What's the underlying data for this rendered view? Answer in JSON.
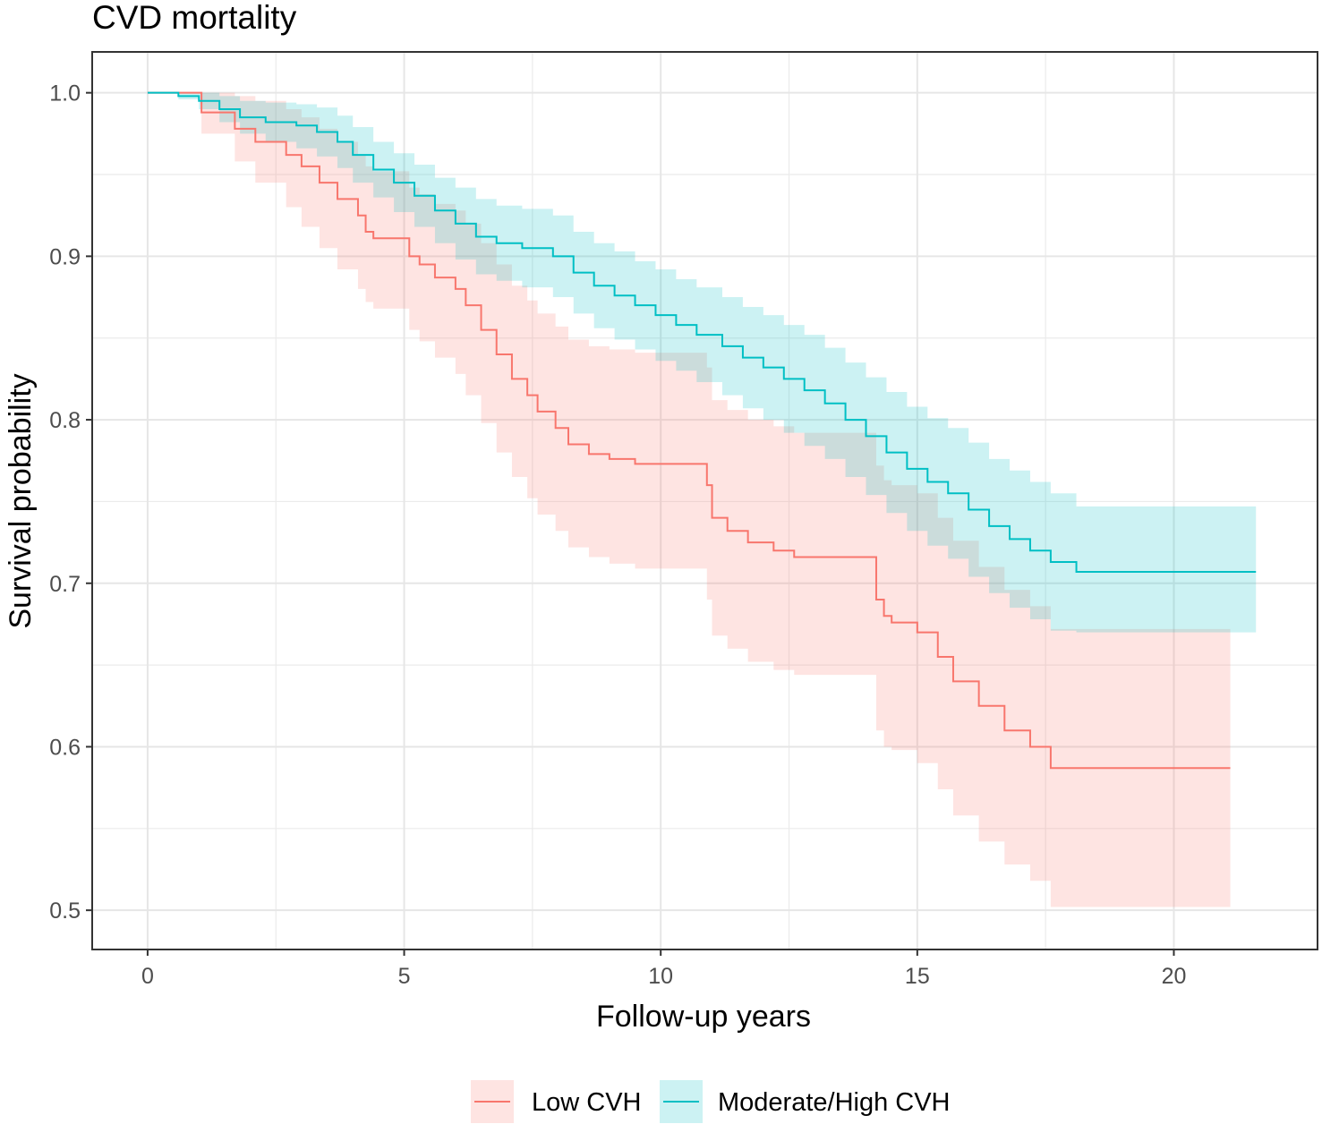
{
  "chart_data": {
    "type": "line",
    "subtype": "kaplan-meier step curve with confidence bands",
    "title": "CVD mortality",
    "xlabel": "Follow-up years",
    "ylabel": "Survival probability",
    "xlim": [
      -1.08,
      22.8
    ],
    "ylim": [
      0.476,
      1.025
    ],
    "xticks": [
      0,
      5,
      10,
      15,
      20
    ],
    "xtick_labels": [
      "0",
      "5",
      "10",
      "15",
      "20"
    ],
    "yticks": [
      0.5,
      0.6,
      0.7,
      0.8,
      0.9,
      1.0
    ],
    "ytick_labels": [
      "0.5",
      "0.6",
      "0.7",
      "0.8",
      "0.9",
      "1.0"
    ],
    "grid": true,
    "legend_position": "bottom",
    "series": [
      {
        "name": "Low CVH",
        "color": "#F8766D",
        "band_color": "#F8766D",
        "x": [
          0,
          1.05,
          1.7,
          2.1,
          2.7,
          3.0,
          3.35,
          3.7,
          4.1,
          4.25,
          4.4,
          5.1,
          5.3,
          5.6,
          6.0,
          6.2,
          6.5,
          6.8,
          7.1,
          7.4,
          7.6,
          7.95,
          8.2,
          8.6,
          9.0,
          9.5,
          10.0,
          10.4,
          10.9,
          11.0,
          11.3,
          11.7,
          12.2,
          12.6,
          13.2,
          14.2,
          14.35,
          14.5,
          15.0,
          15.4,
          15.7,
          16.2,
          16.7,
          17.2,
          17.6,
          21.1
        ],
        "values": [
          1.0,
          0.988,
          0.978,
          0.97,
          0.962,
          0.955,
          0.945,
          0.935,
          0.925,
          0.915,
          0.911,
          0.9,
          0.895,
          0.887,
          0.88,
          0.87,
          0.855,
          0.84,
          0.825,
          0.815,
          0.805,
          0.795,
          0.785,
          0.779,
          0.776,
          0.773,
          0.773,
          0.773,
          0.76,
          0.74,
          0.732,
          0.725,
          0.72,
          0.716,
          0.716,
          0.69,
          0.68,
          0.676,
          0.67,
          0.655,
          0.64,
          0.625,
          0.61,
          0.6,
          0.587,
          0.587
        ],
        "lower": [
          1.0,
          0.975,
          0.958,
          0.945,
          0.93,
          0.918,
          0.905,
          0.892,
          0.88,
          0.872,
          0.868,
          0.855,
          0.848,
          0.838,
          0.828,
          0.815,
          0.798,
          0.78,
          0.765,
          0.752,
          0.742,
          0.732,
          0.722,
          0.716,
          0.712,
          0.709,
          0.709,
          0.709,
          0.69,
          0.668,
          0.66,
          0.652,
          0.647,
          0.644,
          0.644,
          0.61,
          0.6,
          0.598,
          0.59,
          0.574,
          0.558,
          0.542,
          0.528,
          0.518,
          0.502,
          0.502
        ],
        "upper": [
          1.0,
          1.0,
          0.998,
          0.995,
          0.99,
          0.985,
          0.978,
          0.97,
          0.962,
          0.955,
          0.952,
          0.942,
          0.938,
          0.932,
          0.928,
          0.92,
          0.908,
          0.895,
          0.882,
          0.873,
          0.865,
          0.857,
          0.849,
          0.845,
          0.843,
          0.841,
          0.841,
          0.841,
          0.832,
          0.812,
          0.806,
          0.8,
          0.796,
          0.792,
          0.792,
          0.772,
          0.763,
          0.76,
          0.755,
          0.74,
          0.726,
          0.71,
          0.696,
          0.686,
          0.672,
          0.672
        ]
      },
      {
        "name": "Moderate/High CVH",
        "color": "#00BFC4",
        "band_color": "#00BFC4",
        "x": [
          0,
          0.3,
          0.6,
          1.0,
          1.4,
          1.8,
          2.3,
          2.9,
          3.3,
          3.7,
          4.0,
          4.4,
          4.8,
          5.2,
          5.6,
          6.0,
          6.4,
          6.8,
          7.3,
          7.9,
          8.3,
          8.7,
          9.1,
          9.5,
          9.9,
          10.3,
          10.7,
          11.2,
          11.6,
          12.0,
          12.4,
          12.8,
          13.2,
          13.6,
          14.0,
          14.4,
          14.8,
          15.2,
          15.6,
          16.0,
          16.4,
          16.8,
          17.2,
          17.6,
          18.1,
          21.6
        ],
        "values": [
          1.0,
          1.0,
          0.998,
          0.995,
          0.99,
          0.985,
          0.982,
          0.98,
          0.976,
          0.97,
          0.962,
          0.953,
          0.945,
          0.937,
          0.928,
          0.92,
          0.912,
          0.908,
          0.905,
          0.9,
          0.89,
          0.882,
          0.876,
          0.87,
          0.864,
          0.858,
          0.852,
          0.845,
          0.838,
          0.832,
          0.825,
          0.818,
          0.81,
          0.8,
          0.79,
          0.78,
          0.77,
          0.762,
          0.755,
          0.745,
          0.735,
          0.727,
          0.72,
          0.713,
          0.707,
          0.707
        ],
        "lower": [
          1.0,
          1.0,
          0.996,
          0.99,
          0.982,
          0.975,
          0.97,
          0.966,
          0.961,
          0.954,
          0.945,
          0.936,
          0.927,
          0.918,
          0.908,
          0.898,
          0.889,
          0.885,
          0.881,
          0.875,
          0.865,
          0.856,
          0.849,
          0.843,
          0.836,
          0.83,
          0.823,
          0.815,
          0.807,
          0.8,
          0.792,
          0.784,
          0.776,
          0.765,
          0.754,
          0.743,
          0.732,
          0.723,
          0.715,
          0.704,
          0.694,
          0.685,
          0.678,
          0.671,
          0.67,
          0.67
        ],
        "upper": [
          1.0,
          1.0,
          1.0,
          1.0,
          0.998,
          0.995,
          0.994,
          0.993,
          0.991,
          0.986,
          0.979,
          0.97,
          0.963,
          0.956,
          0.948,
          0.942,
          0.935,
          0.931,
          0.929,
          0.925,
          0.915,
          0.908,
          0.903,
          0.897,
          0.892,
          0.886,
          0.881,
          0.875,
          0.869,
          0.864,
          0.858,
          0.852,
          0.844,
          0.835,
          0.826,
          0.817,
          0.808,
          0.801,
          0.795,
          0.786,
          0.776,
          0.769,
          0.762,
          0.755,
          0.747,
          0.747
        ]
      }
    ]
  }
}
